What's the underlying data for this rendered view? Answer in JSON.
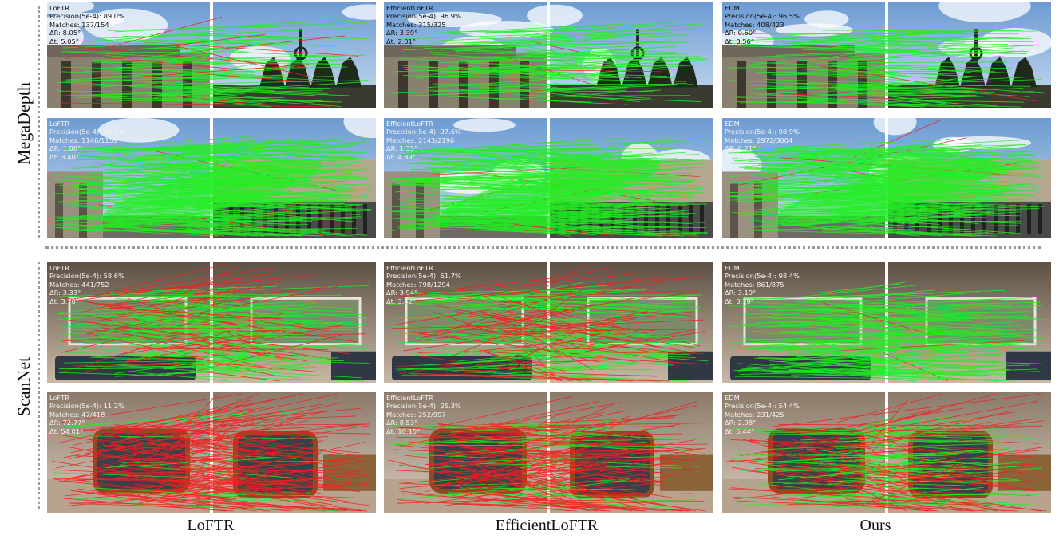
{
  "row_labels": {
    "megadepth": "MegaDepth",
    "scannet": "ScanNet"
  },
  "col_labels": [
    "LoFTR",
    "EfficientLoFTR",
    "Ours"
  ],
  "panels": [
    {
      "group": "MegaDepth",
      "method": "LoFTR",
      "name": "LoFTR",
      "precision": "Precision(5e-4): 89.0%",
      "matches": "Matches: 137/154",
      "dr": "ΔR: 8.05°",
      "dt": "Δt: 5.05°",
      "scene": "gate"
    },
    {
      "group": "MegaDepth",
      "method": "EfficientLoFTR",
      "name": "EfficientLoFTR",
      "precision": "Precision(5e-4): 96.9%",
      "matches": "Matches: 315/325",
      "dr": "ΔR: 3.39°",
      "dt": "Δt: 2.01°",
      "scene": "gate"
    },
    {
      "group": "MegaDepth",
      "method": "Ours",
      "name": "EDM",
      "precision": "Precision(5e-4): 96.5%",
      "matches": "Matches: 408/423",
      "dr": "ΔR: 0.60°",
      "dt": "Δt: 0.56°",
      "scene": "gate"
    },
    {
      "group": "MegaDepth",
      "method": "LoFTR",
      "name": "LoFTR",
      "precision": "Precision(5e-4): 98.9%",
      "matches": "Matches: 1146/1159",
      "dr": "ΔR: 1.08°",
      "dt": "Δt: 3.40°",
      "scene": "square"
    },
    {
      "group": "MegaDepth",
      "method": "EfficientLoFTR",
      "name": "EfficientLoFTR",
      "precision": "Precision(5e-4): 97.6%",
      "matches": "Matches: 2143/2196",
      "dr": "ΔR: 1.35°",
      "dt": "Δt: 4.39°",
      "scene": "square"
    },
    {
      "group": "MegaDepth",
      "method": "Ours",
      "name": "EDM",
      "precision": "Precision(5e-4): 98.9%",
      "matches": "Matches: 2972/3004",
      "dr": "ΔR: 0.21°",
      "dt": "Δt: 0.56°",
      "scene": "square"
    },
    {
      "group": "ScanNet",
      "method": "LoFTR",
      "name": "LoFTR",
      "precision": "Precision(5e-4): 58.6%",
      "matches": "Matches: 441/752",
      "dr": "ΔR: 3.33°",
      "dt": "Δt: 3.70°",
      "scene": "wall"
    },
    {
      "group": "ScanNet",
      "method": "EfficientLoFTR",
      "name": "EfficientLoFTR",
      "precision": "Precision(5e-4): 61.7%",
      "matches": "Matches: 798/1294",
      "dr": "ΔR: 3.94°",
      "dt": "Δt: 3.42°",
      "scene": "wall"
    },
    {
      "group": "ScanNet",
      "method": "Ours",
      "name": "EDM",
      "precision": "Precision(5e-4): 98.4%",
      "matches": "Matches: 861/875",
      "dr": "ΔR: 3.19°",
      "dt": "Δt: 3.19°",
      "scene": "wall"
    },
    {
      "group": "ScanNet",
      "method": "LoFTR",
      "name": "LoFTR",
      "precision": "Precision(5e-4): 11.2%",
      "matches": "Matches: 47/418",
      "dr": "ΔR: 72.77°",
      "dt": "Δt: 54.01°",
      "scene": "sofa"
    },
    {
      "group": "ScanNet",
      "method": "EfficientLoFTR",
      "name": "EfficientLoFTR",
      "precision": "Precision(5e-4): 25.3%",
      "matches": "Matches: 252/997",
      "dr": "ΔR: 8.53°",
      "dt": "Δt: 10.15°",
      "scene": "sofa"
    },
    {
      "group": "ScanNet",
      "method": "Ours",
      "name": "EDM",
      "precision": "Precision(5e-4): 54.4%",
      "matches": "Matches: 231/425",
      "dr": "ΔR: 2.98°",
      "dt": "Δt: 5.44°",
      "scene": "sofa"
    }
  ],
  "colors": {
    "correct_match": "#22ee22",
    "wrong_match": "#ee2222",
    "divider": "#9a9a9a"
  }
}
